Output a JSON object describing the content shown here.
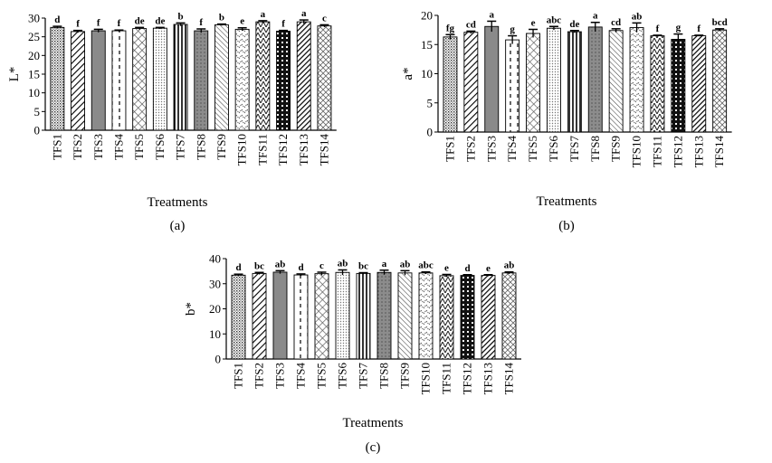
{
  "chart_data": [
    {
      "type": "bar",
      "panel_label": "(a)",
      "xlabel": "Treatments",
      "ylabel": "L*",
      "ylim": [
        0,
        30
      ],
      "yticks": [
        0,
        5,
        10,
        15,
        20,
        25,
        30
      ],
      "categories": [
        "TFS1",
        "TFS2",
        "TFS3",
        "TFS4",
        "TFS5",
        "TFS6",
        "TFS7",
        "TFS8",
        "TFS9",
        "TFS10",
        "TFS11",
        "TFS12",
        "TFS13",
        "TFS14"
      ],
      "values": [
        27.5,
        26.4,
        26.6,
        26.6,
        27.2,
        27.3,
        28.3,
        26.6,
        28.2,
        27.0,
        29.0,
        26.5,
        29.0,
        27.9
      ],
      "errors": [
        0.3,
        0.3,
        0.4,
        0.2,
        0.3,
        0.2,
        0.4,
        0.5,
        0.2,
        0.4,
        0.3,
        0.2,
        0.5,
        0.3
      ],
      "significance": [
        "d",
        "f",
        "f",
        "f",
        "de",
        "de",
        "b",
        "f",
        "b",
        "e",
        "a",
        "f",
        "a",
        "c"
      ]
    },
    {
      "type": "bar",
      "panel_label": "(b)",
      "xlabel": "Treatments",
      "ylabel": "a*",
      "ylim": [
        0,
        20
      ],
      "yticks": [
        0,
        5,
        10,
        15,
        20
      ],
      "categories": [
        "TFS1",
        "TFS2",
        "TFS3",
        "TFS4",
        "TFS5",
        "TFS6",
        "TFS7",
        "TFS8",
        "TFS9",
        "TFS10",
        "TFS11",
        "TFS12",
        "TFS13",
        "TFS14"
      ],
      "values": [
        16.3,
        17.1,
        18.1,
        15.8,
        16.9,
        17.8,
        17.2,
        18.0,
        17.4,
        17.9,
        16.5,
        15.9,
        16.5,
        17.5
      ],
      "errors": [
        0.4,
        0.2,
        0.9,
        0.7,
        0.7,
        0.3,
        0.2,
        0.8,
        0.3,
        0.8,
        0.1,
        0.9,
        0.1,
        0.2
      ],
      "significance": [
        "fg",
        "cd",
        "a",
        "g",
        "e",
        "abc",
        "de",
        "a",
        "cd",
        "ab",
        "f",
        "g",
        "f",
        "bcd"
      ]
    },
    {
      "type": "bar",
      "panel_label": "(c)",
      "xlabel": "Treatments",
      "ylabel": "b*",
      "ylim": [
        0,
        40
      ],
      "yticks": [
        0,
        10,
        20,
        30,
        40
      ],
      "categories": [
        "TFS1",
        "TFS2",
        "TFS3",
        "TFS4",
        "TFS5",
        "TFS6",
        "TFS7",
        "TFS8",
        "TFS9",
        "TFS10",
        "TFS11",
        "TFS12",
        "TFS13",
        "TFS14"
      ],
      "values": [
        33.4,
        34.1,
        34.6,
        33.5,
        34.0,
        34.5,
        34.1,
        34.5,
        34.3,
        34.3,
        33.2,
        33.3,
        33.3,
        34.3
      ],
      "errors": [
        0.4,
        0.4,
        0.6,
        0.4,
        0.6,
        1.0,
        0.3,
        0.9,
        0.9,
        0.4,
        0.5,
        0.3,
        0.3,
        0.4
      ],
      "significance": [
        "d",
        "bc",
        "ab",
        "d",
        "c",
        "ab",
        "bc",
        "a",
        "ab",
        "abc",
        "e",
        "d",
        "e",
        "ab"
      ]
    }
  ]
}
